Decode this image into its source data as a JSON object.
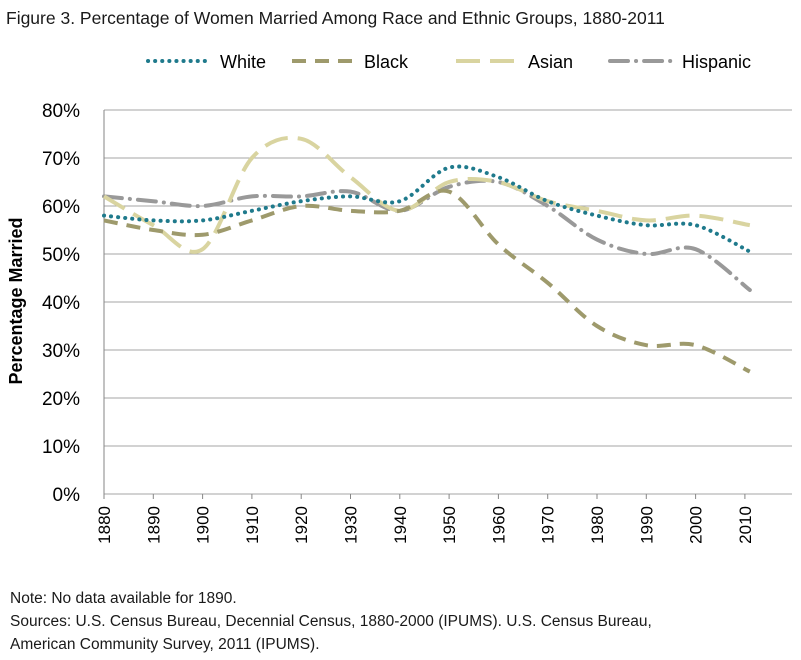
{
  "title": "Figure 3. Percentage of Women Married Among Race and Ethnic Groups, 1880-2011",
  "notes": [
    "Note: No data available for 1890.",
    "Sources: U.S. Census Bureau, Decennial Census, 1880-2000 (IPUMS). U.S. Census Bureau,",
    "American Community Survey, 2011 (IPUMS)."
  ],
  "chart_data": {
    "type": "line",
    "title": "Figure 3. Percentage of Women Married Among Race and Ethnic Groups, 1880-2011",
    "xlabel": "",
    "ylabel": "Percentage Married",
    "xlim": [
      1880,
      2011
    ],
    "ylim": [
      0,
      80
    ],
    "x_ticks": [
      "1880",
      "1890",
      "1900",
      "1910",
      "1920",
      "1930",
      "1940",
      "1950",
      "1960",
      "1970",
      "1980",
      "1990",
      "2000",
      "2010"
    ],
    "y_ticks": [
      "0%",
      "10%",
      "20%",
      "30%",
      "40%",
      "50%",
      "60%",
      "70%",
      "80%"
    ],
    "grid": "horizontal",
    "legend_position": "top",
    "series": [
      {
        "name": "White",
        "color": "#1F7A8C",
        "dash": "dotted",
        "points": [
          [
            1880,
            58
          ],
          [
            1890,
            57
          ],
          [
            1900,
            57
          ],
          [
            1910,
            59
          ],
          [
            1920,
            61
          ],
          [
            1930,
            62
          ],
          [
            1940,
            61
          ],
          [
            1950,
            68
          ],
          [
            1960,
            66
          ],
          [
            1970,
            61
          ],
          [
            1980,
            58
          ],
          [
            1990,
            56
          ],
          [
            2000,
            56
          ],
          [
            2011,
            50.5
          ]
        ]
      },
      {
        "name": "Black",
        "color": "#9E9A6C",
        "dash": "dashed",
        "points": [
          [
            1880,
            57
          ],
          [
            1890,
            55
          ],
          [
            1900,
            54
          ],
          [
            1910,
            57
          ],
          [
            1920,
            60
          ],
          [
            1930,
            59
          ],
          [
            1940,
            59
          ],
          [
            1950,
            63
          ],
          [
            1960,
            52
          ],
          [
            1970,
            44
          ],
          [
            1980,
            35
          ],
          [
            1990,
            31
          ],
          [
            2000,
            31
          ],
          [
            2011,
            25.5
          ]
        ]
      },
      {
        "name": "Asian",
        "color": "#D9D4A0",
        "dash": "longdash",
        "points": [
          [
            1880,
            62
          ],
          [
            1890,
            56
          ],
          [
            1900,
            51
          ],
          [
            1910,
            70
          ],
          [
            1920,
            74
          ],
          [
            1930,
            66
          ],
          [
            1940,
            59
          ],
          [
            1950,
            65
          ],
          [
            1960,
            65
          ],
          [
            1970,
            61
          ],
          [
            1980,
            59
          ],
          [
            1990,
            57
          ],
          [
            2000,
            58
          ],
          [
            2011,
            56
          ]
        ]
      },
      {
        "name": "Hispanic",
        "color": "#999999",
        "dash": "dashdot",
        "points": [
          [
            1880,
            62
          ],
          [
            1890,
            61
          ],
          [
            1900,
            60
          ],
          [
            1910,
            62
          ],
          [
            1920,
            62
          ],
          [
            1930,
            63
          ],
          [
            1940,
            59
          ],
          [
            1950,
            64
          ],
          [
            1960,
            65
          ],
          [
            1970,
            60
          ],
          [
            1980,
            53
          ],
          [
            1990,
            50
          ],
          [
            2000,
            51
          ],
          [
            2011,
            42.5
          ]
        ]
      }
    ]
  }
}
